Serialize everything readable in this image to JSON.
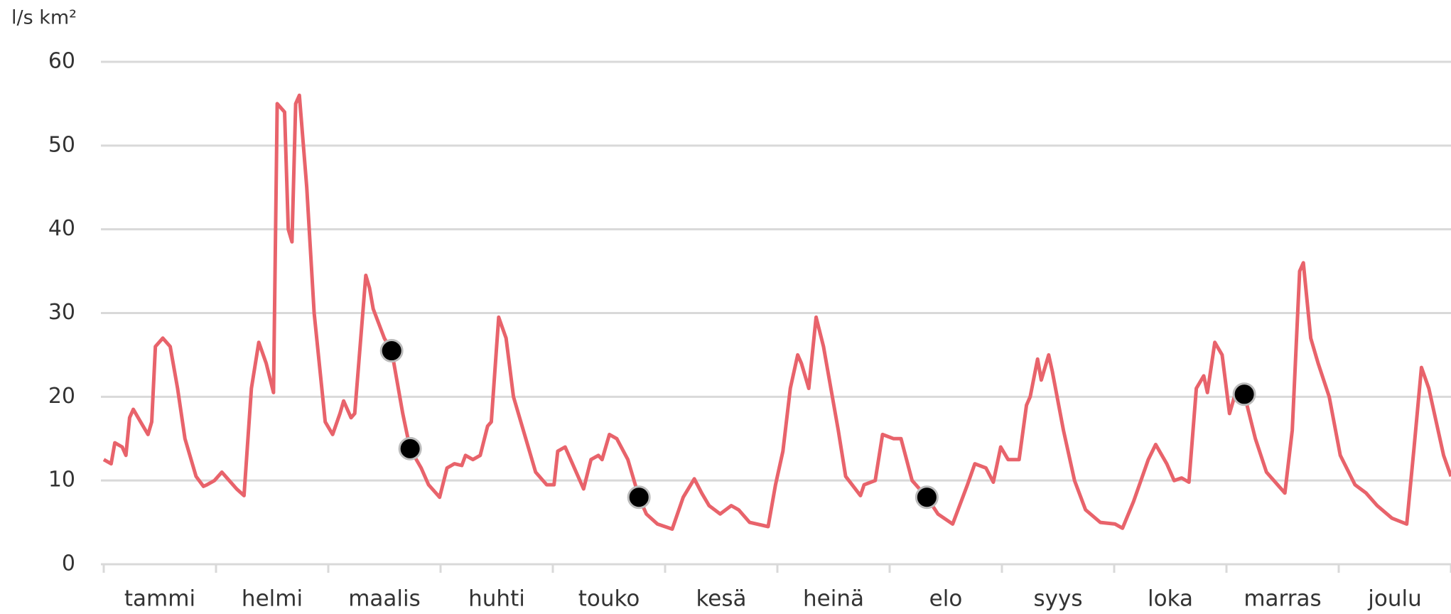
{
  "chart_data": {
    "type": "line",
    "y_label": "l/s km²",
    "categories": [
      "tammi",
      "helmi",
      "maalis",
      "huhti",
      "touko",
      "kesä",
      "heinä",
      "elo",
      "syys",
      "loka",
      "marras",
      "joulu"
    ],
    "xlim": [
      0,
      365
    ],
    "ylim": [
      0,
      60
    ],
    "yticks": [
      0,
      10,
      20,
      30,
      40,
      50,
      60
    ],
    "grid": true,
    "series": [
      {
        "type": "line",
        "color": "#e8636b",
        "x": [
          0,
          2,
          3,
          5,
          6,
          7,
          8,
          10,
          12,
          13,
          14,
          16,
          18,
          20,
          22,
          25,
          27,
          28,
          30,
          32,
          33,
          36,
          38,
          40,
          42,
          44,
          46,
          47,
          49,
          50,
          51,
          52,
          53,
          55,
          57,
          60,
          62,
          64,
          65,
          67,
          68,
          71,
          72,
          73,
          76,
          78,
          81,
          83,
          86,
          88,
          91,
          93,
          95,
          97,
          98,
          100,
          102,
          104,
          105,
          107,
          109,
          111,
          115,
          117,
          120,
          122,
          123,
          125,
          127,
          130,
          132,
          134,
          135,
          137,
          139,
          142,
          145,
          147,
          150,
          154,
          157,
          160,
          162,
          164,
          167,
          170,
          172,
          175,
          180,
          182,
          184,
          186,
          188,
          189,
          191,
          193,
          195,
          199,
          201,
          205,
          206,
          209,
          211,
          214,
          216,
          219,
          223,
          226,
          230,
          234,
          236,
          239,
          241,
          243,
          245,
          248,
          250,
          251,
          253,
          254,
          256,
          257,
          260,
          263,
          266,
          270,
          274,
          276,
          279,
          283,
          285,
          288,
          290,
          292,
          294,
          296,
          298,
          299,
          301,
          303,
          305,
          307,
          309,
          312,
          315,
          317,
          320,
          322,
          324,
          325,
          327,
          329,
          332,
          335,
          339,
          342,
          345,
          349,
          353,
          355,
          357,
          359,
          363,
          365
        ],
        "values": [
          12.5,
          12,
          14.5,
          14,
          13,
          17.5,
          18.5,
          17,
          15.5,
          17,
          26,
          27,
          26,
          21,
          15,
          10.5,
          9.3,
          9.5,
          10,
          11,
          10.5,
          9,
          8.2,
          21,
          26.5,
          24,
          20.5,
          55,
          54,
          40,
          38.5,
          55,
          56,
          45,
          30,
          17,
          15.5,
          18,
          19.5,
          17.5,
          18,
          34.5,
          33,
          30.5,
          27,
          25.5,
          18,
          13.8,
          11.5,
          9.5,
          8,
          11.5,
          12,
          11.8,
          13,
          12.5,
          13,
          16.5,
          17,
          29.5,
          27,
          20,
          14,
          11,
          9.5,
          9.5,
          13.5,
          14,
          12,
          9,
          12.5,
          13,
          12.5,
          15.5,
          15,
          12.5,
          8,
          6,
          4.8,
          4.2,
          8,
          10.2,
          8.5,
          7,
          6,
          7,
          6.5,
          5,
          4.5,
          9.5,
          13.5,
          21,
          25,
          24,
          21,
          29.5,
          26,
          16,
          10.5,
          8.2,
          9.5,
          10,
          15.5,
          15,
          15,
          10,
          8,
          6,
          4.8,
          9.5,
          12,
          11.5,
          9.8,
          14,
          12.5,
          12.5,
          19,
          20,
          24.5,
          22,
          25,
          23,
          16,
          10,
          6.5,
          5,
          4.8,
          4.3,
          7.5,
          12.5,
          14.3,
          12,
          10,
          10.3,
          9.8,
          21,
          22.5,
          20.5,
          26.5,
          25,
          18,
          21,
          20.3,
          15,
          11,
          10,
          8.5,
          16,
          35,
          36,
          27,
          24,
          20,
          13,
          9.5,
          8.5,
          7,
          5.5,
          4.8,
          14,
          23.5,
          21,
          13,
          10.5
        ]
      },
      {
        "type": "scatter",
        "color": "#000000",
        "x": [
          78,
          83,
          145,
          223,
          309
        ],
        "values": [
          25.5,
          13.8,
          8,
          8,
          20.3
        ]
      }
    ]
  }
}
